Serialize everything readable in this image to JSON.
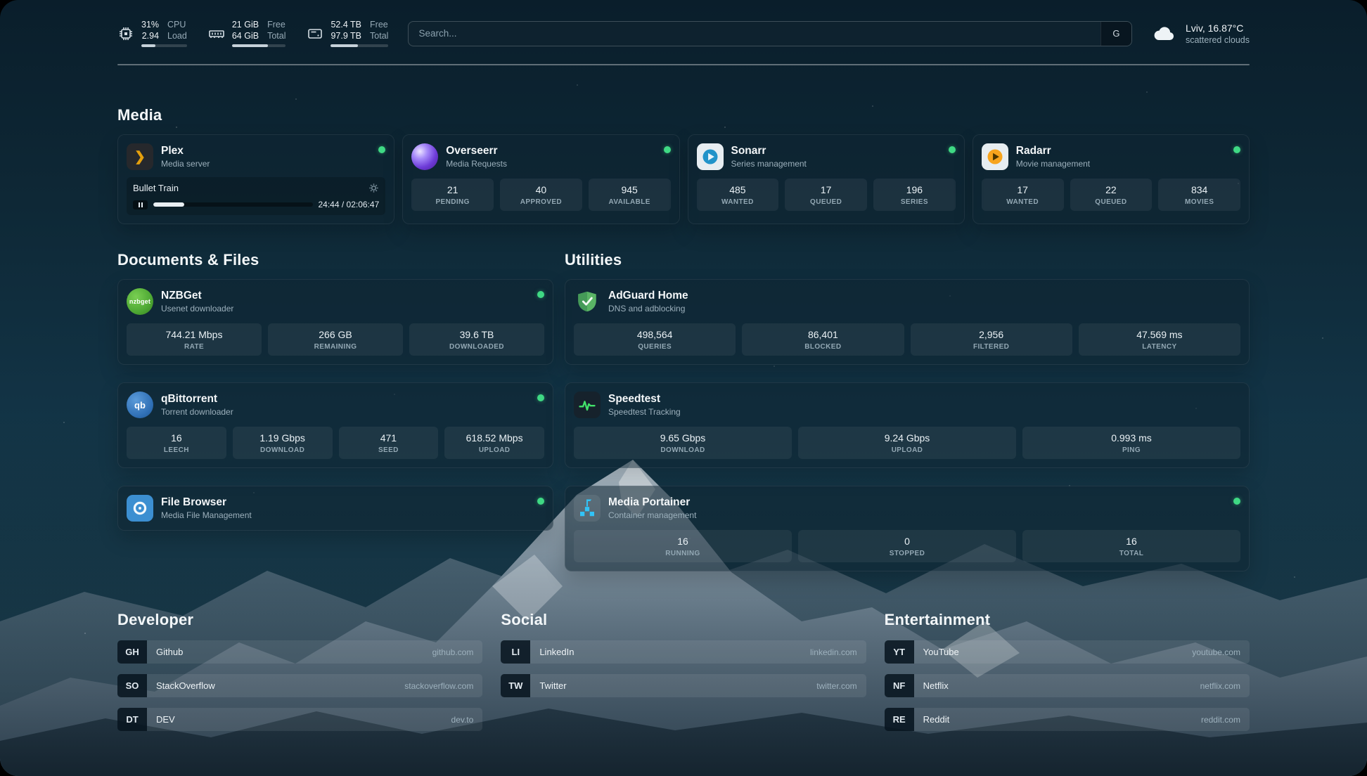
{
  "topbar": {
    "cpu": {
      "value1": "31%",
      "label1": "CPU",
      "value2": "2.94",
      "label2": "Load",
      "percent": 31
    },
    "memory": {
      "value1": "21 GiB",
      "label1": "Free",
      "value2": "64 GiB",
      "label2": "Total",
      "percent": 67
    },
    "disk": {
      "value1": "52.4 TB",
      "label1": "Free",
      "value2": "97.9 TB",
      "label2": "Total",
      "percent": 47
    },
    "search": {
      "placeholder": "Search...",
      "button_label": "G"
    },
    "weather": {
      "location": "Lviv, 16.87°C",
      "condition": "scattered clouds"
    }
  },
  "sections": {
    "media": "Media",
    "documents": "Documents & Files",
    "utilities": "Utilities"
  },
  "services": {
    "plex": {
      "name": "Plex",
      "desc": "Media server",
      "now_playing": "Bullet Train",
      "time": "24:44 / 02:06:47",
      "progress": 19.5
    },
    "overseerr": {
      "name": "Overseerr",
      "desc": "Media Requests",
      "stats": [
        {
          "value": "21",
          "label": "PENDING"
        },
        {
          "value": "40",
          "label": "APPROVED"
        },
        {
          "value": "945",
          "label": "AVAILABLE"
        }
      ]
    },
    "sonarr": {
      "name": "Sonarr",
      "desc": "Series management",
      "stats": [
        {
          "value": "485",
          "label": "WANTED"
        },
        {
          "value": "17",
          "label": "QUEUED"
        },
        {
          "value": "196",
          "label": "SERIES"
        }
      ]
    },
    "radarr": {
      "name": "Radarr",
      "desc": "Movie management",
      "stats": [
        {
          "value": "17",
          "label": "WANTED"
        },
        {
          "value": "22",
          "label": "QUEUED"
        },
        {
          "value": "834",
          "label": "MOVIES"
        }
      ]
    },
    "nzbget": {
      "name": "NZBGet",
      "desc": "Usenet downloader",
      "stats": [
        {
          "value": "744.21 Mbps",
          "label": "RATE"
        },
        {
          "value": "266 GB",
          "label": "REMAINING"
        },
        {
          "value": "39.6 TB",
          "label": "DOWNLOADED"
        }
      ]
    },
    "qbittorrent": {
      "name": "qBittorrent",
      "desc": "Torrent downloader",
      "stats": [
        {
          "value": "16",
          "label": "LEECH"
        },
        {
          "value": "1.19 Gbps",
          "label": "DOWNLOAD"
        },
        {
          "value": "471",
          "label": "SEED"
        },
        {
          "value": "618.52 Mbps",
          "label": "UPLOAD"
        }
      ]
    },
    "filebrowser": {
      "name": "File Browser",
      "desc": "Media File Management"
    },
    "adguard": {
      "name": "AdGuard Home",
      "desc": "DNS and adblocking",
      "stats": [
        {
          "value": "498,564",
          "label": "QUERIES"
        },
        {
          "value": "86,401",
          "label": "BLOCKED"
        },
        {
          "value": "2,956",
          "label": "FILTERED"
        },
        {
          "value": "47.569 ms",
          "label": "LATENCY"
        }
      ]
    },
    "speedtest": {
      "name": "Speedtest",
      "desc": "Speedtest Tracking",
      "stats": [
        {
          "value": "9.65 Gbps",
          "label": "DOWNLOAD"
        },
        {
          "value": "9.24 Gbps",
          "label": "UPLOAD"
        },
        {
          "value": "0.993 ms",
          "label": "PING"
        }
      ]
    },
    "portainer": {
      "name": "Media Portainer",
      "desc": "Container management",
      "stats": [
        {
          "value": "16",
          "label": "RUNNING"
        },
        {
          "value": "0",
          "label": "STOPPED"
        },
        {
          "value": "16",
          "label": "TOTAL"
        }
      ]
    }
  },
  "bookmarks": {
    "developer": {
      "title": "Developer",
      "items": [
        {
          "abbr": "GH",
          "name": "Github",
          "domain": "github.com"
        },
        {
          "abbr": "SO",
          "name": "StackOverflow",
          "domain": "stackoverflow.com"
        },
        {
          "abbr": "DT",
          "name": "DEV",
          "domain": "dev.to"
        }
      ]
    },
    "social": {
      "title": "Social",
      "items": [
        {
          "abbr": "LI",
          "name": "LinkedIn",
          "domain": "linkedin.com"
        },
        {
          "abbr": "TW",
          "name": "Twitter",
          "domain": "twitter.com"
        }
      ]
    },
    "entertainment": {
      "title": "Entertainment",
      "items": [
        {
          "abbr": "YT",
          "name": "YouTube",
          "domain": "youtube.com"
        },
        {
          "abbr": "NF",
          "name": "Netflix",
          "domain": "netflix.com"
        },
        {
          "abbr": "RE",
          "name": "Reddit",
          "domain": "reddit.com"
        }
      ]
    }
  },
  "icons": {
    "plex_glyph": "❯",
    "qbittorrent_glyph": "qb",
    "nzbget_glyph": "nzbget"
  },
  "colors": {
    "status_ok": "#3fd984",
    "plex_amber": "#e5a00d",
    "sonarr_blue": "#2193c9",
    "radarr_amber": "#f7a41d",
    "adguard_green": "#5ab465",
    "speedtest_pulse": "#42e26a",
    "portainer_blue": "#31c3f7"
  }
}
